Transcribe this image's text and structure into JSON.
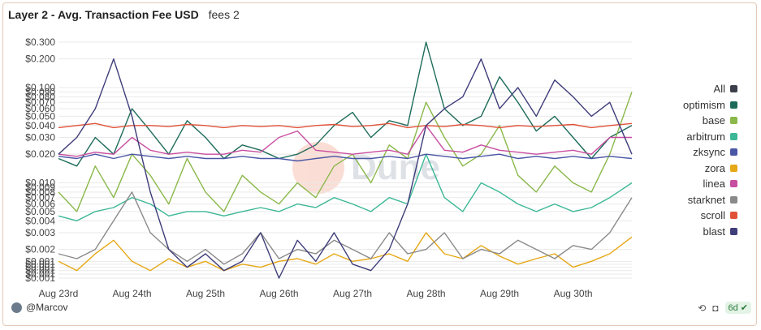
{
  "header": {
    "title": "Layer 2 - Avg. Transaction Fee USD",
    "subtitle": "fees 2"
  },
  "footer": {
    "author": "@Marcov",
    "age": "6d"
  },
  "watermark": "Dune",
  "chart_data": {
    "type": "line",
    "title": "Layer 2 - Avg. Transaction Fee USD",
    "xlabel": "",
    "ylabel": "",
    "yscale": "log",
    "ylim": [
      0.001,
      0.3
    ],
    "y_ticks": [
      "$0.001",
      "$0.001",
      "$0.001",
      "$0.001",
      "$0.001",
      "$0.001",
      "$0.002",
      "$0.003",
      "$0.004",
      "$0.005",
      "$0.006",
      "$0.007",
      "$0.008",
      "$0.009",
      "$0.010",
      "$0.020",
      "$0.030",
      "$0.040",
      "$0.050",
      "$0.060",
      "$0.070",
      "$0.080",
      "$0.090",
      "$0.100",
      "$0.200",
      "$0.300"
    ],
    "y_tick_values": [
      0.001,
      0.0011,
      0.0012,
      0.0013,
      0.0014,
      0.0015,
      0.002,
      0.003,
      0.004,
      0.005,
      0.006,
      0.007,
      0.008,
      0.009,
      0.01,
      0.02,
      0.03,
      0.04,
      0.05,
      0.06,
      0.07,
      0.08,
      0.09,
      0.1,
      0.2,
      0.3
    ],
    "x_ticks": [
      "Aug 23rd",
      "Aug 24th",
      "Aug 25th",
      "Aug 26th",
      "Aug 27th",
      "Aug 28th",
      "Aug 29th",
      "Aug 30th"
    ],
    "x_tick_values": [
      0,
      1,
      2,
      3,
      4,
      5,
      6,
      7
    ],
    "x_range_days": [
      0,
      7.8
    ],
    "grid": true,
    "legend_position": "right",
    "series": [
      {
        "name": "All",
        "color": "#3a3f4a",
        "visible": false,
        "x": [],
        "values": []
      },
      {
        "name": "optimism",
        "color": "#1e6b5a",
        "x": [
          0,
          0.25,
          0.5,
          0.75,
          1,
          1.25,
          1.5,
          1.75,
          2,
          2.25,
          2.5,
          2.75,
          3,
          3.25,
          3.5,
          3.75,
          4,
          4.25,
          4.5,
          4.75,
          5,
          5.25,
          5.5,
          5.75,
          6,
          6.25,
          6.5,
          6.75,
          7,
          7.25,
          7.5,
          7.8
        ],
        "values": [
          0.018,
          0.015,
          0.03,
          0.02,
          0.06,
          0.035,
          0.02,
          0.045,
          0.03,
          0.018,
          0.025,
          0.022,
          0.018,
          0.02,
          0.025,
          0.04,
          0.055,
          0.03,
          0.045,
          0.04,
          0.3,
          0.06,
          0.04,
          0.05,
          0.13,
          0.07,
          0.035,
          0.05,
          0.03,
          0.018,
          0.03,
          0.04
        ]
      },
      {
        "name": "base",
        "color": "#8ab84a",
        "x": [
          0,
          0.25,
          0.5,
          0.75,
          1,
          1.25,
          1.5,
          1.75,
          2,
          2.25,
          2.5,
          2.75,
          3,
          3.25,
          3.5,
          3.75,
          4,
          4.25,
          4.5,
          4.75,
          5,
          5.25,
          5.5,
          5.75,
          6,
          6.25,
          6.5,
          6.75,
          7,
          7.25,
          7.5,
          7.8
        ],
        "values": [
          0.008,
          0.005,
          0.015,
          0.007,
          0.02,
          0.012,
          0.006,
          0.018,
          0.008,
          0.005,
          0.012,
          0.008,
          0.006,
          0.01,
          0.007,
          0.015,
          0.02,
          0.01,
          0.025,
          0.018,
          0.07,
          0.03,
          0.015,
          0.02,
          0.04,
          0.012,
          0.008,
          0.015,
          0.01,
          0.008,
          0.02,
          0.09
        ]
      },
      {
        "name": "arbitrum",
        "color": "#3cb896",
        "x": [
          0,
          0.25,
          0.5,
          0.75,
          1,
          1.25,
          1.5,
          1.75,
          2,
          2.25,
          2.5,
          2.75,
          3,
          3.25,
          3.5,
          3.75,
          4,
          4.25,
          4.5,
          4.75,
          5,
          5.25,
          5.5,
          5.75,
          6,
          6.25,
          6.5,
          6.75,
          7,
          7.25,
          7.5,
          7.8
        ],
        "values": [
          0.0045,
          0.004,
          0.005,
          0.0055,
          0.007,
          0.006,
          0.0045,
          0.005,
          0.005,
          0.0045,
          0.005,
          0.0055,
          0.005,
          0.006,
          0.0055,
          0.007,
          0.006,
          0.005,
          0.007,
          0.006,
          0.02,
          0.007,
          0.005,
          0.01,
          0.008,
          0.006,
          0.005,
          0.006,
          0.005,
          0.0055,
          0.007,
          0.01
        ]
      },
      {
        "name": "zksync",
        "color": "#4a56a6",
        "x": [
          0,
          0.25,
          0.5,
          0.75,
          1,
          1.25,
          1.5,
          1.75,
          2,
          2.25,
          2.5,
          2.75,
          3,
          3.25,
          3.5,
          3.75,
          4,
          4.25,
          4.5,
          4.75,
          5,
          5.25,
          5.5,
          5.75,
          6,
          6.25,
          6.5,
          6.75,
          7,
          7.25,
          7.5,
          7.8
        ],
        "values": [
          0.019,
          0.018,
          0.02,
          0.018,
          0.02,
          0.019,
          0.018,
          0.019,
          0.018,
          0.018,
          0.019,
          0.018,
          0.018,
          0.017,
          0.018,
          0.019,
          0.018,
          0.018,
          0.019,
          0.018,
          0.02,
          0.019,
          0.018,
          0.019,
          0.02,
          0.018,
          0.019,
          0.018,
          0.019,
          0.018,
          0.019,
          0.018
        ]
      },
      {
        "name": "zora",
        "color": "#e6a817",
        "x": [
          0,
          0.25,
          0.5,
          0.75,
          1,
          1.25,
          1.5,
          1.75,
          2,
          2.25,
          2.5,
          2.75,
          3,
          3.25,
          3.5,
          3.75,
          4,
          4.25,
          4.5,
          4.75,
          5,
          5.25,
          5.5,
          5.75,
          6,
          6.25,
          6.5,
          6.75,
          7,
          7.25,
          7.5,
          7.8
        ],
        "values": [
          0.0015,
          0.0012,
          0.0018,
          0.0025,
          0.0015,
          0.0012,
          0.0016,
          0.0013,
          0.0015,
          0.0012,
          0.0014,
          0.0013,
          0.0015,
          0.0016,
          0.0014,
          0.0018,
          0.0015,
          0.0016,
          0.0018,
          0.0015,
          0.003,
          0.0018,
          0.0016,
          0.0022,
          0.0017,
          0.0014,
          0.0016,
          0.0018,
          0.0013,
          0.0015,
          0.0018,
          0.0027
        ]
      },
      {
        "name": "linea",
        "color": "#c84ea0",
        "x": [
          0,
          0.25,
          0.5,
          0.75,
          1,
          1.25,
          1.5,
          1.75,
          2,
          2.25,
          2.5,
          2.75,
          3,
          3.25,
          3.5,
          3.75,
          4,
          4.25,
          4.5,
          4.75,
          5,
          5.25,
          5.5,
          5.75,
          6,
          6.25,
          6.5,
          6.75,
          7,
          7.25,
          7.5,
          7.8
        ],
        "values": [
          0.02,
          0.019,
          0.021,
          0.02,
          0.03,
          0.022,
          0.02,
          0.021,
          0.02,
          0.02,
          0.022,
          0.021,
          0.03,
          0.035,
          0.022,
          0.021,
          0.02,
          0.021,
          0.022,
          0.02,
          0.04,
          0.022,
          0.021,
          0.025,
          0.022,
          0.021,
          0.02,
          0.021,
          0.022,
          0.02,
          0.03,
          0.03
        ]
      },
      {
        "name": "starknet",
        "color": "#8a8a8a",
        "x": [
          0,
          0.25,
          0.5,
          0.75,
          1,
          1.25,
          1.5,
          1.75,
          2,
          2.25,
          2.5,
          2.75,
          3,
          3.25,
          3.5,
          3.75,
          4,
          4.25,
          4.5,
          4.75,
          5,
          5.25,
          5.5,
          5.75,
          6,
          6.25,
          6.5,
          6.75,
          7,
          7.25,
          7.5,
          7.8
        ],
        "values": [
          0.0018,
          0.0016,
          0.002,
          0.004,
          0.008,
          0.003,
          0.002,
          0.0015,
          0.002,
          0.0014,
          0.0018,
          0.003,
          0.0016,
          0.002,
          0.0018,
          0.0025,
          0.002,
          0.0016,
          0.003,
          0.0018,
          0.002,
          0.003,
          0.0016,
          0.002,
          0.0018,
          0.0025,
          0.002,
          0.0016,
          0.0022,
          0.002,
          0.003,
          0.007
        ]
      },
      {
        "name": "scroll",
        "color": "#e05238",
        "x": [
          0,
          0.25,
          0.5,
          0.75,
          1,
          1.25,
          1.5,
          1.75,
          2,
          2.25,
          2.5,
          2.75,
          3,
          3.25,
          3.5,
          3.75,
          4,
          4.25,
          4.5,
          4.75,
          5,
          5.25,
          5.5,
          5.75,
          6,
          6.25,
          6.5,
          6.75,
          7,
          7.25,
          7.5,
          7.8
        ],
        "values": [
          0.038,
          0.04,
          0.042,
          0.038,
          0.04,
          0.04,
          0.039,
          0.041,
          0.04,
          0.038,
          0.04,
          0.039,
          0.04,
          0.038,
          0.04,
          0.041,
          0.039,
          0.04,
          0.042,
          0.038,
          0.04,
          0.039,
          0.041,
          0.04,
          0.038,
          0.04,
          0.039,
          0.04,
          0.041,
          0.038,
          0.04,
          0.042
        ]
      },
      {
        "name": "blast",
        "color": "#3f3d7a",
        "x": [
          0,
          0.25,
          0.5,
          0.75,
          1,
          1.25,
          1.5,
          1.75,
          2,
          2.25,
          2.5,
          2.75,
          3,
          3.25,
          3.5,
          3.75,
          4,
          4.25,
          4.5,
          4.75,
          5,
          5.25,
          5.5,
          5.75,
          6,
          6.25,
          6.5,
          6.75,
          7,
          7.25,
          7.5,
          7.8
        ],
        "values": [
          0.02,
          0.03,
          0.06,
          0.2,
          0.05,
          0.008,
          0.002,
          0.0013,
          0.0018,
          0.0012,
          0.0015,
          0.003,
          0.001,
          0.0025,
          0.0015,
          0.003,
          0.0014,
          0.0012,
          0.002,
          0.006,
          0.04,
          0.06,
          0.08,
          0.2,
          0.06,
          0.1,
          0.05,
          0.12,
          0.08,
          0.05,
          0.07,
          0.02
        ]
      }
    ]
  }
}
